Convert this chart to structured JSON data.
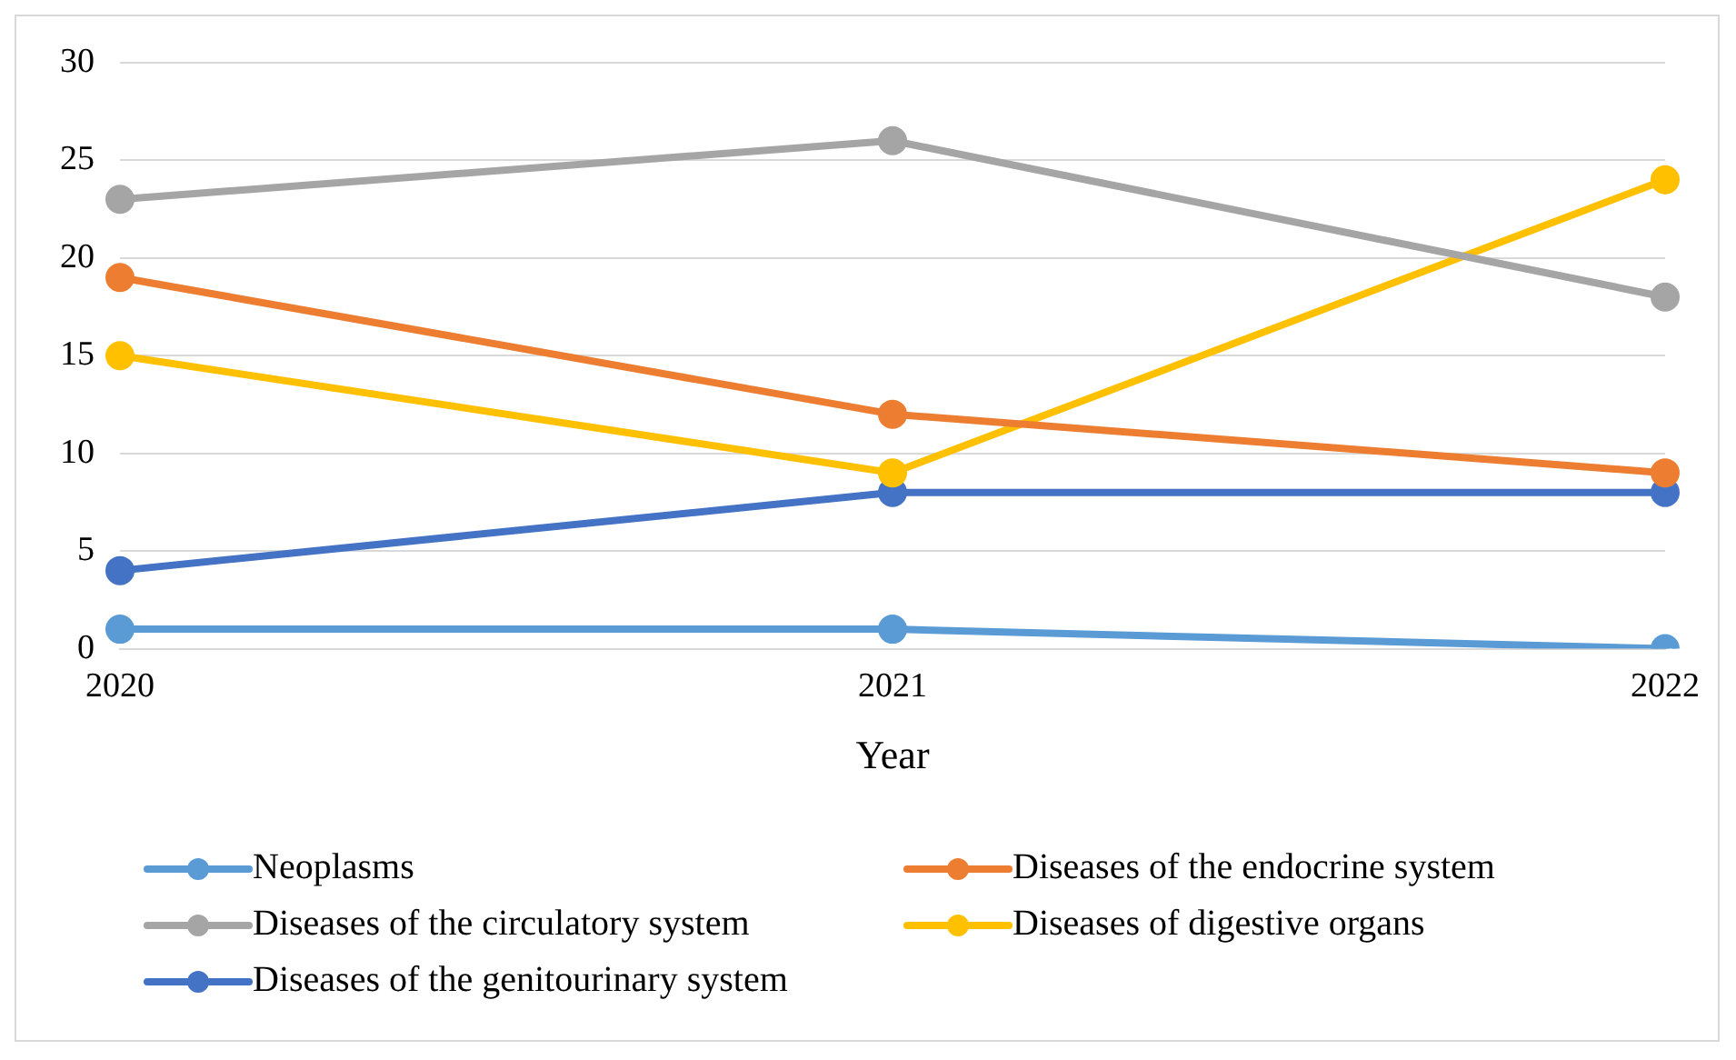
{
  "chart_data": {
    "type": "line",
    "xlabel": "Year",
    "categories": [
      "2020",
      "2021",
      "2022"
    ],
    "series": [
      {
        "name": "Neoplasms",
        "color": "#5b9bd5",
        "values": [
          1,
          1,
          0
        ]
      },
      {
        "name": "Diseases of the endocrine system",
        "color": "#ed7d31",
        "values": [
          19,
          12,
          9
        ]
      },
      {
        "name": "Diseases of the circulatory system",
        "color": "#a5a5a5",
        "values": [
          23,
          26,
          18
        ]
      },
      {
        "name": "Diseases of digestive organs",
        "color": "#ffc000",
        "values": [
          15,
          9,
          24
        ]
      },
      {
        "name": "Diseases of the genitourinary system",
        "color": "#4472c4",
        "values": [
          4,
          8,
          8
        ]
      }
    ],
    "ylim": [
      0,
      30
    ],
    "yticks": [
      0,
      5,
      10,
      15,
      20,
      25,
      30
    ],
    "grid": "y",
    "legend": "bottom",
    "marker": "circle",
    "line_style": "solid"
  }
}
